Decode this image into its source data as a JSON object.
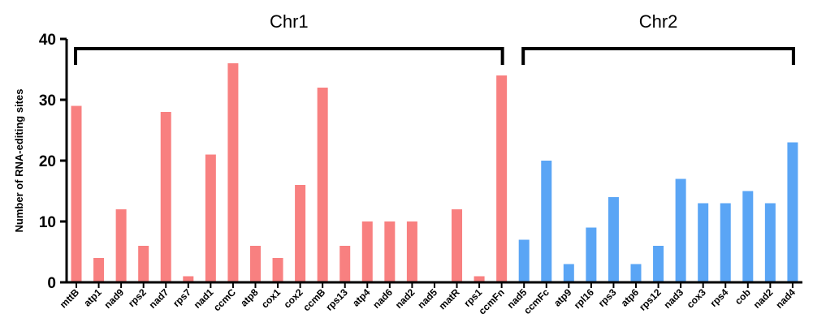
{
  "chart_data": {
    "type": "bar",
    "ylabel": "Number of RNA-editing sites",
    "ylim": [
      0,
      40
    ],
    "yticks": [
      0,
      10,
      20,
      30,
      40
    ],
    "categories": [
      "mttB",
      "atp1",
      "nad9",
      "rps2",
      "nad7",
      "rps7",
      "nad1",
      "ccmC",
      "atp8",
      "cox1",
      "cox2",
      "ccmB",
      "rps13",
      "atp4",
      "nad6",
      "nad2",
      "nad5",
      "matR",
      "rps1",
      "ccmFn",
      "nad5",
      "ccmFc",
      "atp9",
      "rpl16",
      "rps3",
      "atp6",
      "rps12",
      "nad3",
      "cox3",
      "rps4",
      "cob",
      "nad2",
      "nad4"
    ],
    "values": [
      29,
      4,
      12,
      6,
      28,
      1,
      21,
      36,
      6,
      4,
      16,
      32,
      6,
      10,
      10,
      10,
      0,
      12,
      1,
      34,
      7,
      20,
      3,
      9,
      14,
      3,
      6,
      17,
      13,
      13,
      15,
      13,
      23
    ],
    "groups": [
      {
        "name": "Chr1",
        "start": 0,
        "end": 19,
        "color": "#f88080"
      },
      {
        "name": "Chr2",
        "start": 20,
        "end": 32,
        "color": "#5aa5f5"
      }
    ],
    "grid": false
  }
}
